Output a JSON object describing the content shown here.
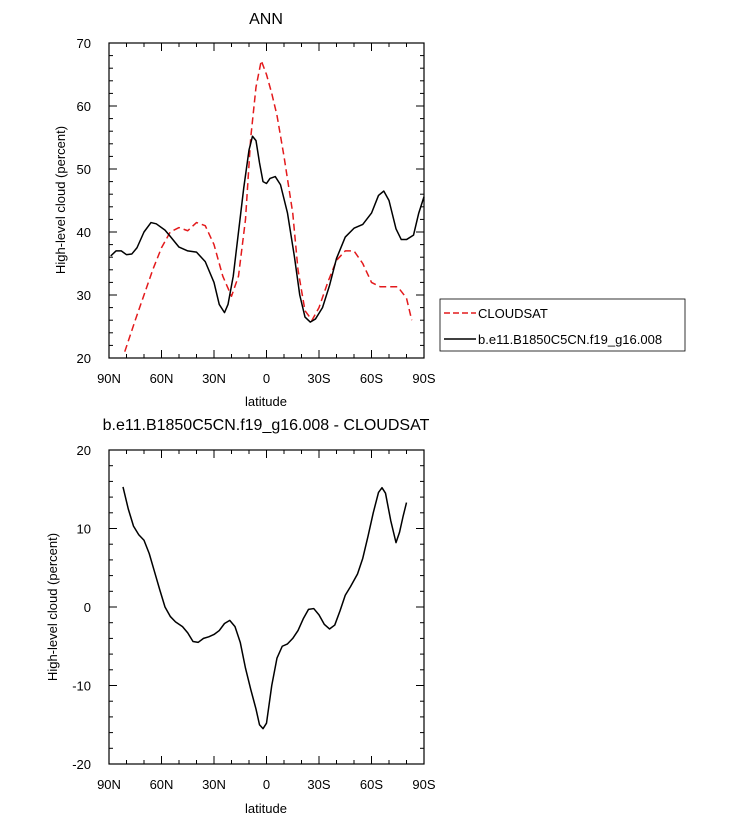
{
  "chart_data": [
    {
      "type": "line",
      "title": "ANN",
      "xlabel": "latitude",
      "ylabel": "High-level cloud (percent)",
      "xlim": [
        90,
        -90
      ],
      "ylim": [
        20,
        70
      ],
      "yticks": [
        20,
        30,
        40,
        50,
        60,
        70
      ],
      "xticks": [
        90,
        60,
        30,
        0,
        -30,
        -60,
        -90
      ],
      "xtick_labels": [
        "90N",
        "60N",
        "30N",
        "0",
        "30S",
        "60S",
        "90S"
      ],
      "grid": false,
      "legend_position": "right",
      "series": [
        {
          "name": "CLOUDSAT",
          "color": "#e31a1c",
          "dash": "dashed",
          "points": [
            [
              81,
              21
            ],
            [
              75,
              26
            ],
            [
              70,
              30
            ],
            [
              65,
              34
            ],
            [
              60,
              37.5
            ],
            [
              55,
              40
            ],
            [
              50,
              40.7
            ],
            [
              45,
              40.2
            ],
            [
              40,
              41.5
            ],
            [
              35,
              41
            ],
            [
              30,
              38
            ],
            [
              25,
              33
            ],
            [
              20,
              29.8
            ],
            [
              16,
              33
            ],
            [
              12,
              42
            ],
            [
              9,
              55
            ],
            [
              6,
              63
            ],
            [
              3,
              67.2
            ],
            [
              0,
              65
            ],
            [
              -3,
              62
            ],
            [
              -6,
              58.5
            ],
            [
              -10,
              52
            ],
            [
              -15,
              43
            ],
            [
              -18,
              34
            ],
            [
              -22,
              27.5
            ],
            [
              -26,
              26
            ],
            [
              -30,
              28
            ],
            [
              -35,
              32
            ],
            [
              -40,
              35.5
            ],
            [
              -45,
              37
            ],
            [
              -50,
              37
            ],
            [
              -55,
              35
            ],
            [
              -60,
              32
            ],
            [
              -65,
              31.3
            ],
            [
              -70,
              31.3
            ],
            [
              -75,
              31.3
            ],
            [
              -80,
              29.5
            ],
            [
              -83,
              26
            ]
          ]
        },
        {
          "name": "b.e11.B1850C5CN.f19_g16.008",
          "color": "#000000",
          "dash": "solid",
          "points": [
            [
              89,
              36.2
            ],
            [
              86,
              37
            ],
            [
              83,
              37
            ],
            [
              80,
              36.4
            ],
            [
              77,
              36.5
            ],
            [
              74,
              37.5
            ],
            [
              70,
              40
            ],
            [
              66,
              41.5
            ],
            [
              63,
              41.3
            ],
            [
              58,
              40.3
            ],
            [
              55,
              39.3
            ],
            [
              50,
              37.6
            ],
            [
              45,
              37
            ],
            [
              40,
              36.8
            ],
            [
              35,
              35.3
            ],
            [
              30,
              32
            ],
            [
              27,
              28.5
            ],
            [
              24,
              27.2
            ],
            [
              22,
              28.5
            ],
            [
              19,
              33
            ],
            [
              16,
              40
            ],
            [
              13,
              47
            ],
            [
              10,
              53
            ],
            [
              8,
              55.2
            ],
            [
              6,
              54.5
            ],
            [
              4,
              51
            ],
            [
              2,
              48
            ],
            [
              0,
              47.7
            ],
            [
              -2,
              48.5
            ],
            [
              -5,
              48.8
            ],
            [
              -8,
              47.5
            ],
            [
              -12,
              43
            ],
            [
              -16,
              36
            ],
            [
              -19,
              30
            ],
            [
              -22,
              26.5
            ],
            [
              -25,
              25.7
            ],
            [
              -28,
              26.2
            ],
            [
              -32,
              28
            ],
            [
              -36,
              31.5
            ],
            [
              -40,
              35.8
            ],
            [
              -45,
              39.2
            ],
            [
              -50,
              40.6
            ],
            [
              -55,
              41.2
            ],
            [
              -60,
              43
            ],
            [
              -64,
              45.8
            ],
            [
              -67,
              46.5
            ],
            [
              -70,
              45
            ],
            [
              -74,
              40.5
            ],
            [
              -77,
              38.8
            ],
            [
              -80,
              38.8
            ],
            [
              -84,
              39.5
            ],
            [
              -87,
              43
            ],
            [
              -90,
              45.6
            ]
          ]
        }
      ]
    },
    {
      "type": "line",
      "title": "b.e11.B1850C5CN.f19_g16.008 - CLOUDSAT",
      "xlabel": "latitude",
      "ylabel": "High-level cloud (percent)",
      "xlim": [
        90,
        -90
      ],
      "ylim": [
        -20,
        20
      ],
      "yticks": [
        -20,
        -10,
        0,
        10,
        20
      ],
      "xticks": [
        90,
        60,
        30,
        0,
        -30,
        -60,
        -90
      ],
      "xtick_labels": [
        "90N",
        "60N",
        "30N",
        "0",
        "30S",
        "60S",
        "90S"
      ],
      "grid": false,
      "series": [
        {
          "color": "#000000",
          "dash": "solid",
          "points": [
            [
              82,
              15.3
            ],
            [
              79,
              12.5
            ],
            [
              76,
              10.3
            ],
            [
              73,
              9.2
            ],
            [
              70,
              8.5
            ],
            [
              67,
              6.8
            ],
            [
              64,
              4.5
            ],
            [
              61,
              2.2
            ],
            [
              58,
              0
            ],
            [
              55,
              -1.2
            ],
            [
              52,
              -1.9
            ],
            [
              48,
              -2.5
            ],
            [
              45,
              -3.3
            ],
            [
              42,
              -4.4
            ],
            [
              39,
              -4.5
            ],
            [
              36,
              -4
            ],
            [
              33,
              -3.8
            ],
            [
              30,
              -3.5
            ],
            [
              27,
              -3
            ],
            [
              24,
              -2.1
            ],
            [
              21,
              -1.7
            ],
            [
              18,
              -2.5
            ],
            [
              15,
              -4.5
            ],
            [
              12,
              -7.8
            ],
            [
              9,
              -10.5
            ],
            [
              6,
              -13
            ],
            [
              4,
              -15
            ],
            [
              2,
              -15.5
            ],
            [
              0,
              -14.8
            ],
            [
              -3,
              -10
            ],
            [
              -6,
              -6.5
            ],
            [
              -9,
              -5
            ],
            [
              -12,
              -4.7
            ],
            [
              -15,
              -4
            ],
            [
              -18,
              -3
            ],
            [
              -21,
              -1.5
            ],
            [
              -24,
              -0.3
            ],
            [
              -27,
              -0.2
            ],
            [
              -30,
              -1
            ],
            [
              -33,
              -2.2
            ],
            [
              -36,
              -2.8
            ],
            [
              -39,
              -2.3
            ],
            [
              -42,
              -0.5
            ],
            [
              -45,
              1.5
            ],
            [
              -48,
              2.6
            ],
            [
              -52,
              4.2
            ],
            [
              -55,
              6.2
            ],
            [
              -58,
              9
            ],
            [
              -61,
              12
            ],
            [
              -64,
              14.6
            ],
            [
              -66,
              15.2
            ],
            [
              -68,
              14.5
            ],
            [
              -71,
              11
            ],
            [
              -74,
              8.2
            ],
            [
              -76,
              9.5
            ],
            [
              -78,
              11.5
            ],
            [
              -80,
              13.3
            ]
          ]
        }
      ]
    }
  ]
}
